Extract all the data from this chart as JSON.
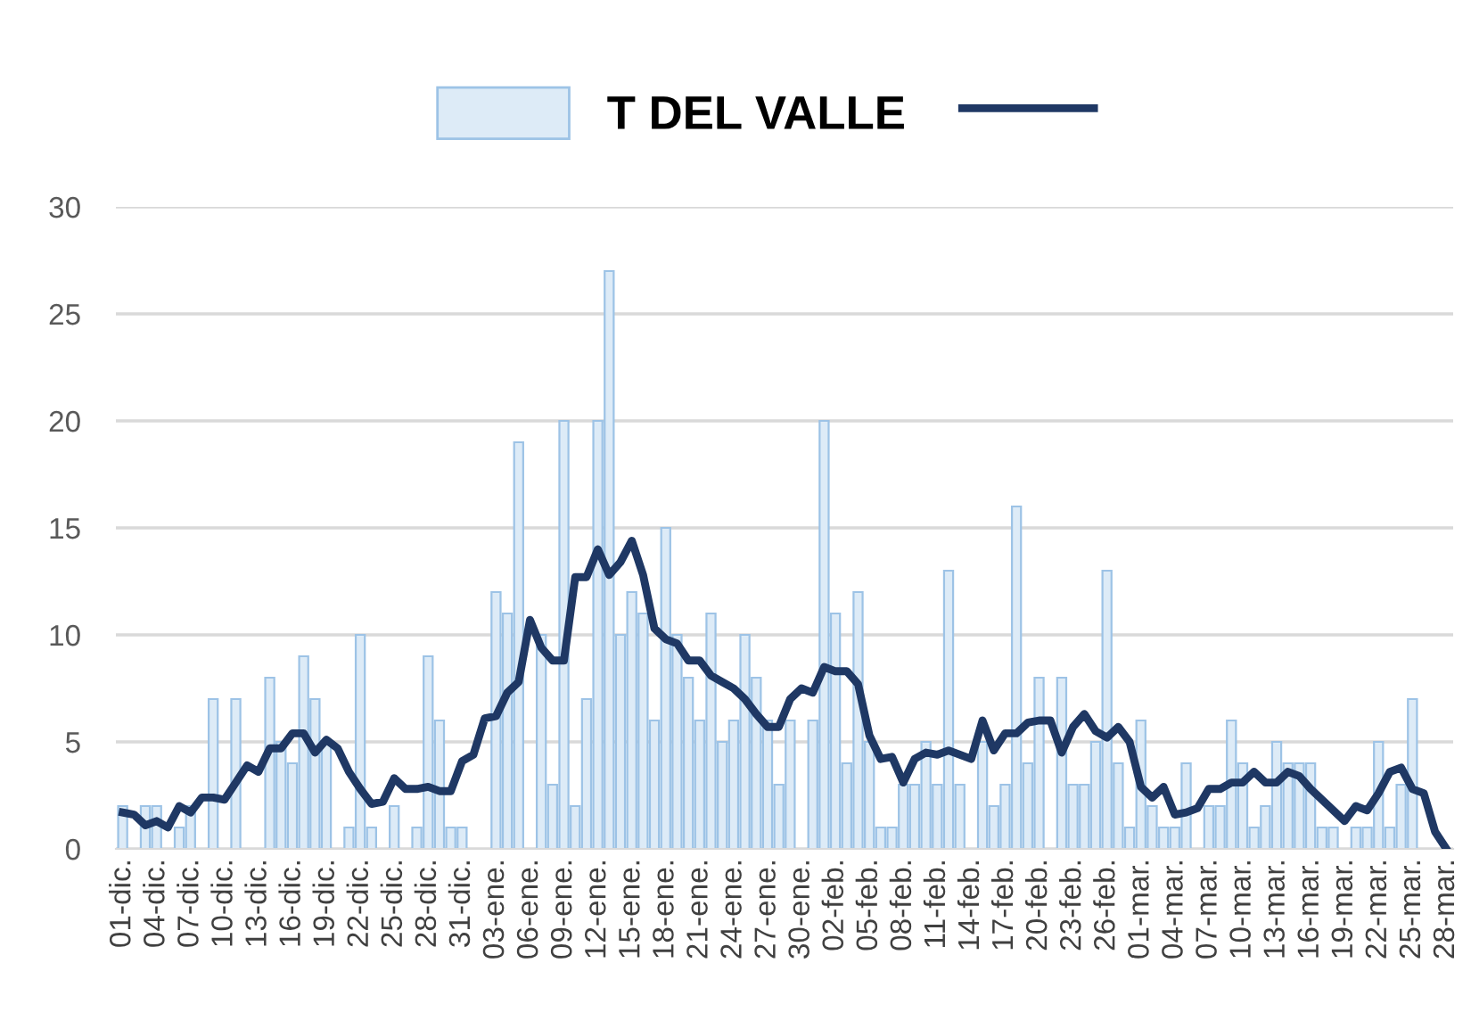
{
  "chart_data": {
    "type": "bar",
    "categories": [
      "01-dic.",
      null,
      null,
      "04-dic.",
      null,
      null,
      "07-dic.",
      null,
      null,
      "10-dic.",
      null,
      null,
      "13-dic.",
      null,
      null,
      "16-dic.",
      null,
      null,
      "19-dic.",
      null,
      null,
      "22-dic.",
      null,
      null,
      "25-dic.",
      null,
      null,
      "28-dic.",
      null,
      null,
      "31-dic.",
      null,
      null,
      "03-ene.",
      null,
      null,
      "06-ene.",
      null,
      null,
      "09-ene.",
      null,
      null,
      "12-ene.",
      null,
      null,
      "15-ene.",
      null,
      null,
      "18-ene.",
      null,
      null,
      "21-ene.",
      null,
      null,
      "24-ene.",
      null,
      null,
      "27-ene.",
      null,
      null,
      "30-ene.",
      null,
      null,
      "02-feb.",
      null,
      null,
      "05-feb.",
      null,
      null,
      "08-feb.",
      null,
      null,
      "11-feb.",
      null,
      null,
      "14-feb.",
      null,
      null,
      "17-feb.",
      null,
      null,
      "20-feb.",
      null,
      null,
      "23-feb.",
      null,
      null,
      "26-feb.",
      null,
      null,
      "01-mar.",
      null,
      null,
      "04-mar.",
      null,
      null,
      "07-mar.",
      null,
      null,
      "10-mar.",
      null,
      null,
      "13-mar.",
      null,
      null,
      "16-mar.",
      null,
      null,
      "19-mar.",
      null,
      null,
      "22-mar.",
      null,
      null,
      "25-mar.",
      null,
      null,
      "28-mar."
    ],
    "series": [
      {
        "name": "T DEL VALLE",
        "color": "#ddebf7",
        "values": [
          2,
          0,
          2,
          2,
          0,
          1,
          2,
          0,
          7,
          0,
          7,
          0,
          0,
          8,
          5,
          4,
          9,
          7,
          5,
          0,
          1,
          10,
          1,
          0,
          2,
          0,
          1,
          9,
          6,
          1,
          1,
          0,
          0,
          12,
          11,
          19,
          0,
          10,
          3,
          20,
          2,
          7,
          20,
          27,
          10,
          12,
          11,
          6,
          15,
          10,
          8,
          6,
          11,
          5,
          6,
          10,
          8,
          6,
          3,
          6,
          0,
          6,
          20,
          11,
          4,
          12,
          5,
          1,
          1,
          3,
          3,
          5,
          3,
          13,
          3,
          0,
          5,
          2,
          3,
          16,
          4,
          8,
          0,
          8,
          3,
          3,
          5,
          13,
          4,
          1,
          6,
          2,
          1,
          1,
          4,
          0,
          2,
          2,
          6,
          4,
          1,
          2,
          5,
          4,
          4,
          4,
          1,
          1,
          0,
          1,
          1,
          5,
          1,
          3,
          7,
          0,
          0,
          0
        ]
      },
      {
        "type": "line",
        "color": "#1f3864",
        "values": [
          1.7,
          1.6,
          1.1,
          1.3,
          1.0,
          2.0,
          1.7,
          2.4,
          2.4,
          2.3,
          3.1,
          3.9,
          3.6,
          4.7,
          4.7,
          5.4,
          5.4,
          4.5,
          5.1,
          4.7,
          3.6,
          2.8,
          2.1,
          2.2,
          3.3,
          2.8,
          2.8,
          2.9,
          2.7,
          2.7,
          4.1,
          4.4,
          6.1,
          6.2,
          7.3,
          7.8,
          10.7,
          9.4,
          8.8,
          8.8,
          12.7,
          12.7,
          14.0,
          12.8,
          13.4,
          14.4,
          12.8,
          10.3,
          9.8,
          9.6,
          8.8,
          8.8,
          8.1,
          7.8,
          7.5,
          7.0,
          6.3,
          5.7,
          5.7,
          7.0,
          7.5,
          7.3,
          8.5,
          8.3,
          8.3,
          7.7,
          5.3,
          4.2,
          4.3,
          3.1,
          4.2,
          4.5,
          4.4,
          4.6,
          4.4,
          4.2,
          6.0,
          4.6,
          5.4,
          5.4,
          5.9,
          6.0,
          6.0,
          4.5,
          5.7,
          6.3,
          5.5,
          5.2,
          5.7,
          5.0,
          2.9,
          2.4,
          2.9,
          1.6,
          1.7,
          1.9,
          2.8,
          2.8,
          3.1,
          3.1,
          3.6,
          3.1,
          3.1,
          3.6,
          3.4,
          2.8,
          2.3,
          1.8,
          1.3,
          2.0,
          1.8,
          2.6,
          3.6,
          3.8,
          2.8,
          2.6,
          0.8,
          0
        ]
      }
    ],
    "ylim": [
      0,
      30
    ],
    "yticks": [
      0,
      5,
      10,
      15,
      20,
      25,
      30
    ],
    "grid": "y",
    "legend": "top"
  }
}
